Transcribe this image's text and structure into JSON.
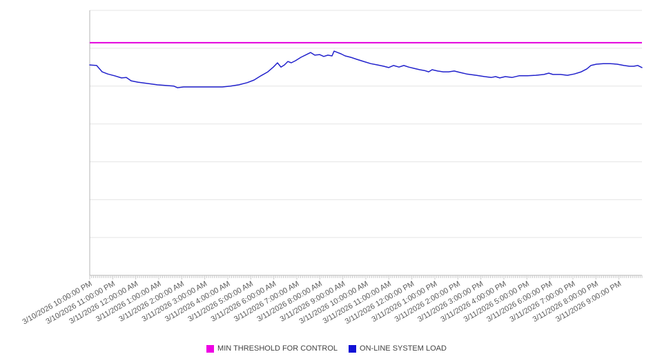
{
  "chart_data": {
    "type": "line",
    "title": "",
    "background": "#ffffff",
    "legend_position": "bottom",
    "x_labels": [
      "3/10/2026 10:00:00 PM",
      "3/10/2026 11:00:00 PM",
      "3/11/2026 12:00:00 AM",
      "3/11/2026 1:00:00 AM",
      "3/11/2026 2:00:00 AM",
      "3/11/2026 3:00:00 AM",
      "3/11/2026 4:00:00 AM",
      "3/11/2026 5:00:00 AM",
      "3/11/2026 6:00:00 AM",
      "3/11/2026 7:00:00 AM",
      "3/11/2026 8:00:00 AM",
      "3/11/2026 9:00:00 AM",
      "3/11/2026 10:00:00 AM",
      "3/11/2026 11:00:00 AM",
      "3/11/2026 12:00:00 PM",
      "3/11/2026 1:00:00 PM",
      "3/11/2026 2:00:00 PM",
      "3/11/2026 3:00:00 PM",
      "3/11/2026 4:00:00 PM",
      "3/11/2026 5:00:00 PM",
      "3/11/2026 6:00:00 PM",
      "3/11/2026 7:00:00 PM",
      "3/11/2026 8:00:00 PM",
      "3/11/2026 9:00:00 PM"
    ],
    "x_axis": {
      "hours_shown": 24,
      "minor_tick_minutes": 5,
      "label_rotation_deg": -30
    },
    "y_axis": {
      "labels_visible": false,
      "ylim": [
        0,
        100
      ],
      "gridline_count": 8
    },
    "grid": {
      "color": "#e4e4e4",
      "axis_color": "#b4b4b4",
      "tick_color": "#c9c9c9"
    },
    "series": [
      {
        "name": "MIN THRESHOLD FOR CONTROL",
        "type": "threshold",
        "color": "#e300dc",
        "value": 87.8
      },
      {
        "name": "ON-LINE SYSTEM LOAD",
        "type": "line",
        "color": "#2121cc",
        "points": [
          [
            0.0,
            79.4
          ],
          [
            0.3,
            79.2
          ],
          [
            0.54,
            76.8
          ],
          [
            0.78,
            76.0
          ],
          [
            1.08,
            75.3
          ],
          [
            1.38,
            74.5
          ],
          [
            1.59,
            74.7
          ],
          [
            1.8,
            73.4
          ],
          [
            2.1,
            72.9
          ],
          [
            2.52,
            72.4
          ],
          [
            2.94,
            71.9
          ],
          [
            3.42,
            71.6
          ],
          [
            3.66,
            71.4
          ],
          [
            3.81,
            70.8
          ],
          [
            4.08,
            71.1
          ],
          [
            4.8,
            71.1
          ],
          [
            5.4,
            71.1
          ],
          [
            5.76,
            71.1
          ],
          [
            6.12,
            71.4
          ],
          [
            6.48,
            71.9
          ],
          [
            6.84,
            72.7
          ],
          [
            7.14,
            73.7
          ],
          [
            7.44,
            75.3
          ],
          [
            7.74,
            76.8
          ],
          [
            7.98,
            78.6
          ],
          [
            8.16,
            80.2
          ],
          [
            8.31,
            78.6
          ],
          [
            8.46,
            79.4
          ],
          [
            8.61,
            80.7
          ],
          [
            8.76,
            80.2
          ],
          [
            8.94,
            81.0
          ],
          [
            9.18,
            82.3
          ],
          [
            9.42,
            83.3
          ],
          [
            9.6,
            84.1
          ],
          [
            9.78,
            83.1
          ],
          [
            9.99,
            83.3
          ],
          [
            10.17,
            82.6
          ],
          [
            10.35,
            83.1
          ],
          [
            10.53,
            82.8
          ],
          [
            10.62,
            84.6
          ],
          [
            10.77,
            84.1
          ],
          [
            10.92,
            83.6
          ],
          [
            11.1,
            82.8
          ],
          [
            11.34,
            82.3
          ],
          [
            11.61,
            81.5
          ],
          [
            11.91,
            80.7
          ],
          [
            12.21,
            79.9
          ],
          [
            12.51,
            79.4
          ],
          [
            12.78,
            78.9
          ],
          [
            12.99,
            78.4
          ],
          [
            13.2,
            79.2
          ],
          [
            13.44,
            78.6
          ],
          [
            13.65,
            79.2
          ],
          [
            13.86,
            78.6
          ],
          [
            14.1,
            78.1
          ],
          [
            14.34,
            77.6
          ],
          [
            14.55,
            77.3
          ],
          [
            14.73,
            76.8
          ],
          [
            14.88,
            77.6
          ],
          [
            15.12,
            77.1
          ],
          [
            15.36,
            76.8
          ],
          [
            15.6,
            76.8
          ],
          [
            15.84,
            77.1
          ],
          [
            16.08,
            76.6
          ],
          [
            16.38,
            76.0
          ],
          [
            16.8,
            75.5
          ],
          [
            17.16,
            75.0
          ],
          [
            17.46,
            74.7
          ],
          [
            17.64,
            75.0
          ],
          [
            17.82,
            74.5
          ],
          [
            18.06,
            75.0
          ],
          [
            18.36,
            74.7
          ],
          [
            18.66,
            75.3
          ],
          [
            19.02,
            75.3
          ],
          [
            19.38,
            75.5
          ],
          [
            19.74,
            75.8
          ],
          [
            19.95,
            76.3
          ],
          [
            20.13,
            75.8
          ],
          [
            20.46,
            75.8
          ],
          [
            20.76,
            75.5
          ],
          [
            21.06,
            76.0
          ],
          [
            21.36,
            76.8
          ],
          [
            21.6,
            77.9
          ],
          [
            21.78,
            79.2
          ],
          [
            22.02,
            79.7
          ],
          [
            22.32,
            79.9
          ],
          [
            22.62,
            79.9
          ],
          [
            22.92,
            79.7
          ],
          [
            23.22,
            79.2
          ],
          [
            23.46,
            78.9
          ],
          [
            23.64,
            78.9
          ],
          [
            23.82,
            79.2
          ],
          [
            24.0,
            78.4
          ]
        ]
      }
    ]
  },
  "legend": {
    "items": [
      {
        "label": "MIN THRESHOLD FOR CONTROL",
        "color": "#ee00e4"
      },
      {
        "label": "ON-LINE SYSTEM LOAD",
        "color": "#1111d6"
      }
    ]
  }
}
